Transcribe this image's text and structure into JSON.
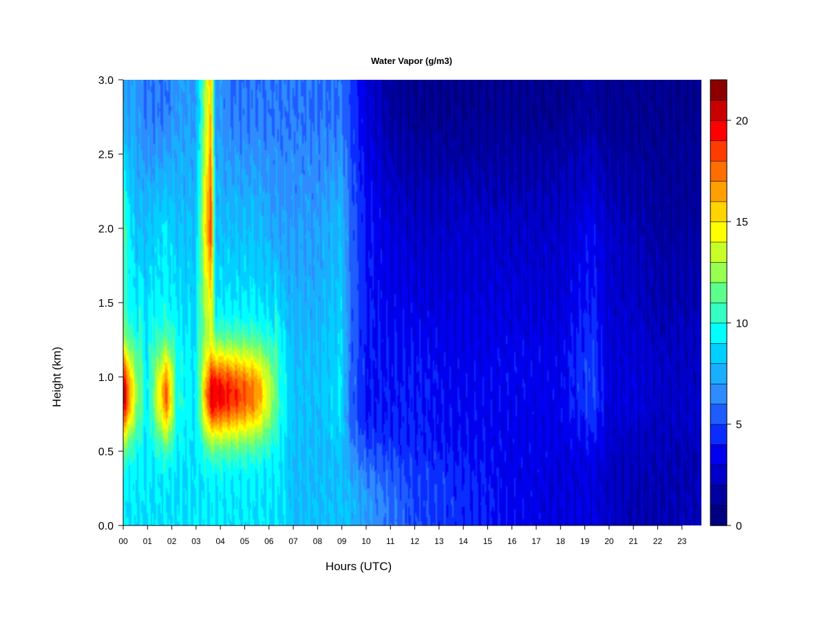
{
  "chart_data": {
    "type": "heatmap",
    "title": "Water Vapor (g/m3)",
    "xlabel": "Hours (UTC)",
    "ylabel": "Height (km)",
    "xlim": [
      0,
      23.8
    ],
    "ylim": [
      0,
      3.0
    ],
    "x_ticks": [
      "00",
      "01",
      "02",
      "03",
      "04",
      "05",
      "06",
      "07",
      "08",
      "09",
      "10",
      "11",
      "12",
      "13",
      "14",
      "15",
      "16",
      "17",
      "18",
      "19",
      "20",
      "21",
      "22",
      "23"
    ],
    "y_ticks": [
      "0.0",
      "0.5",
      "1.0",
      "1.5",
      "2.0",
      "2.5",
      "3.0"
    ],
    "colorbar": {
      "range": [
        0,
        22
      ],
      "ticks": [
        "0",
        "5",
        "10",
        "15",
        "20"
      ],
      "levels": [
        "#000080",
        "#00009f",
        "#0000c8",
        "#0000ee",
        "#0a2cff",
        "#1e5cff",
        "#2e8cff",
        "#1aaeff",
        "#00d0ff",
        "#00ffff",
        "#36ffc4",
        "#5cff8c",
        "#96ff50",
        "#c8ff28",
        "#ffff00",
        "#ffd400",
        "#ffa000",
        "#ff6e00",
        "#ff3c00",
        "#ff0000",
        "#c80000",
        "#8c0000"
      ]
    },
    "grid": false,
    "field_description": {
      "x": [
        0,
        0.5,
        1,
        1.8,
        2.2,
        3,
        3.6,
        3.8,
        4.5,
        5.5,
        6.5,
        7,
        8,
        9,
        9.3,
        10,
        11,
        12,
        14,
        16,
        18,
        19.3,
        20,
        21,
        22,
        23.8
      ],
      "y": [
        0,
        0.25,
        0.5,
        0.75,
        0.9,
        1.0,
        1.25,
        1.5,
        2.0,
        2.5,
        3.0
      ],
      "z_at_0.9km": [
        21,
        13,
        9,
        18,
        10,
        9,
        20,
        20,
        19,
        17,
        10,
        8,
        8,
        9,
        6,
        4,
        4,
        4,
        3.5,
        3.5,
        3.5,
        5,
        3,
        3,
        2.5,
        2.5
      ],
      "z_at_0.1km": [
        9,
        9,
        9,
        9,
        9,
        9,
        9,
        9,
        9,
        9,
        9,
        8,
        8,
        8,
        8,
        7,
        6,
        5,
        4.5,
        3.5,
        3,
        3,
        2.5,
        2,
        2,
        2
      ],
      "z_at_2.0km": [
        11,
        8,
        8,
        9,
        8,
        8,
        19,
        8,
        8,
        8,
        7,
        7,
        7,
        8,
        6,
        4,
        3,
        2.5,
        2.5,
        2.5,
        2.5,
        3.5,
        2.5,
        2,
        1.5,
        1.5
      ],
      "z_at_2.8km": [
        7,
        7,
        6,
        6,
        7,
        7,
        16,
        7,
        6,
        6,
        6,
        6,
        6,
        6,
        5,
        3,
        1.5,
        1,
        1,
        1,
        1,
        1.5,
        1,
        1,
        1,
        1
      ]
    }
  }
}
